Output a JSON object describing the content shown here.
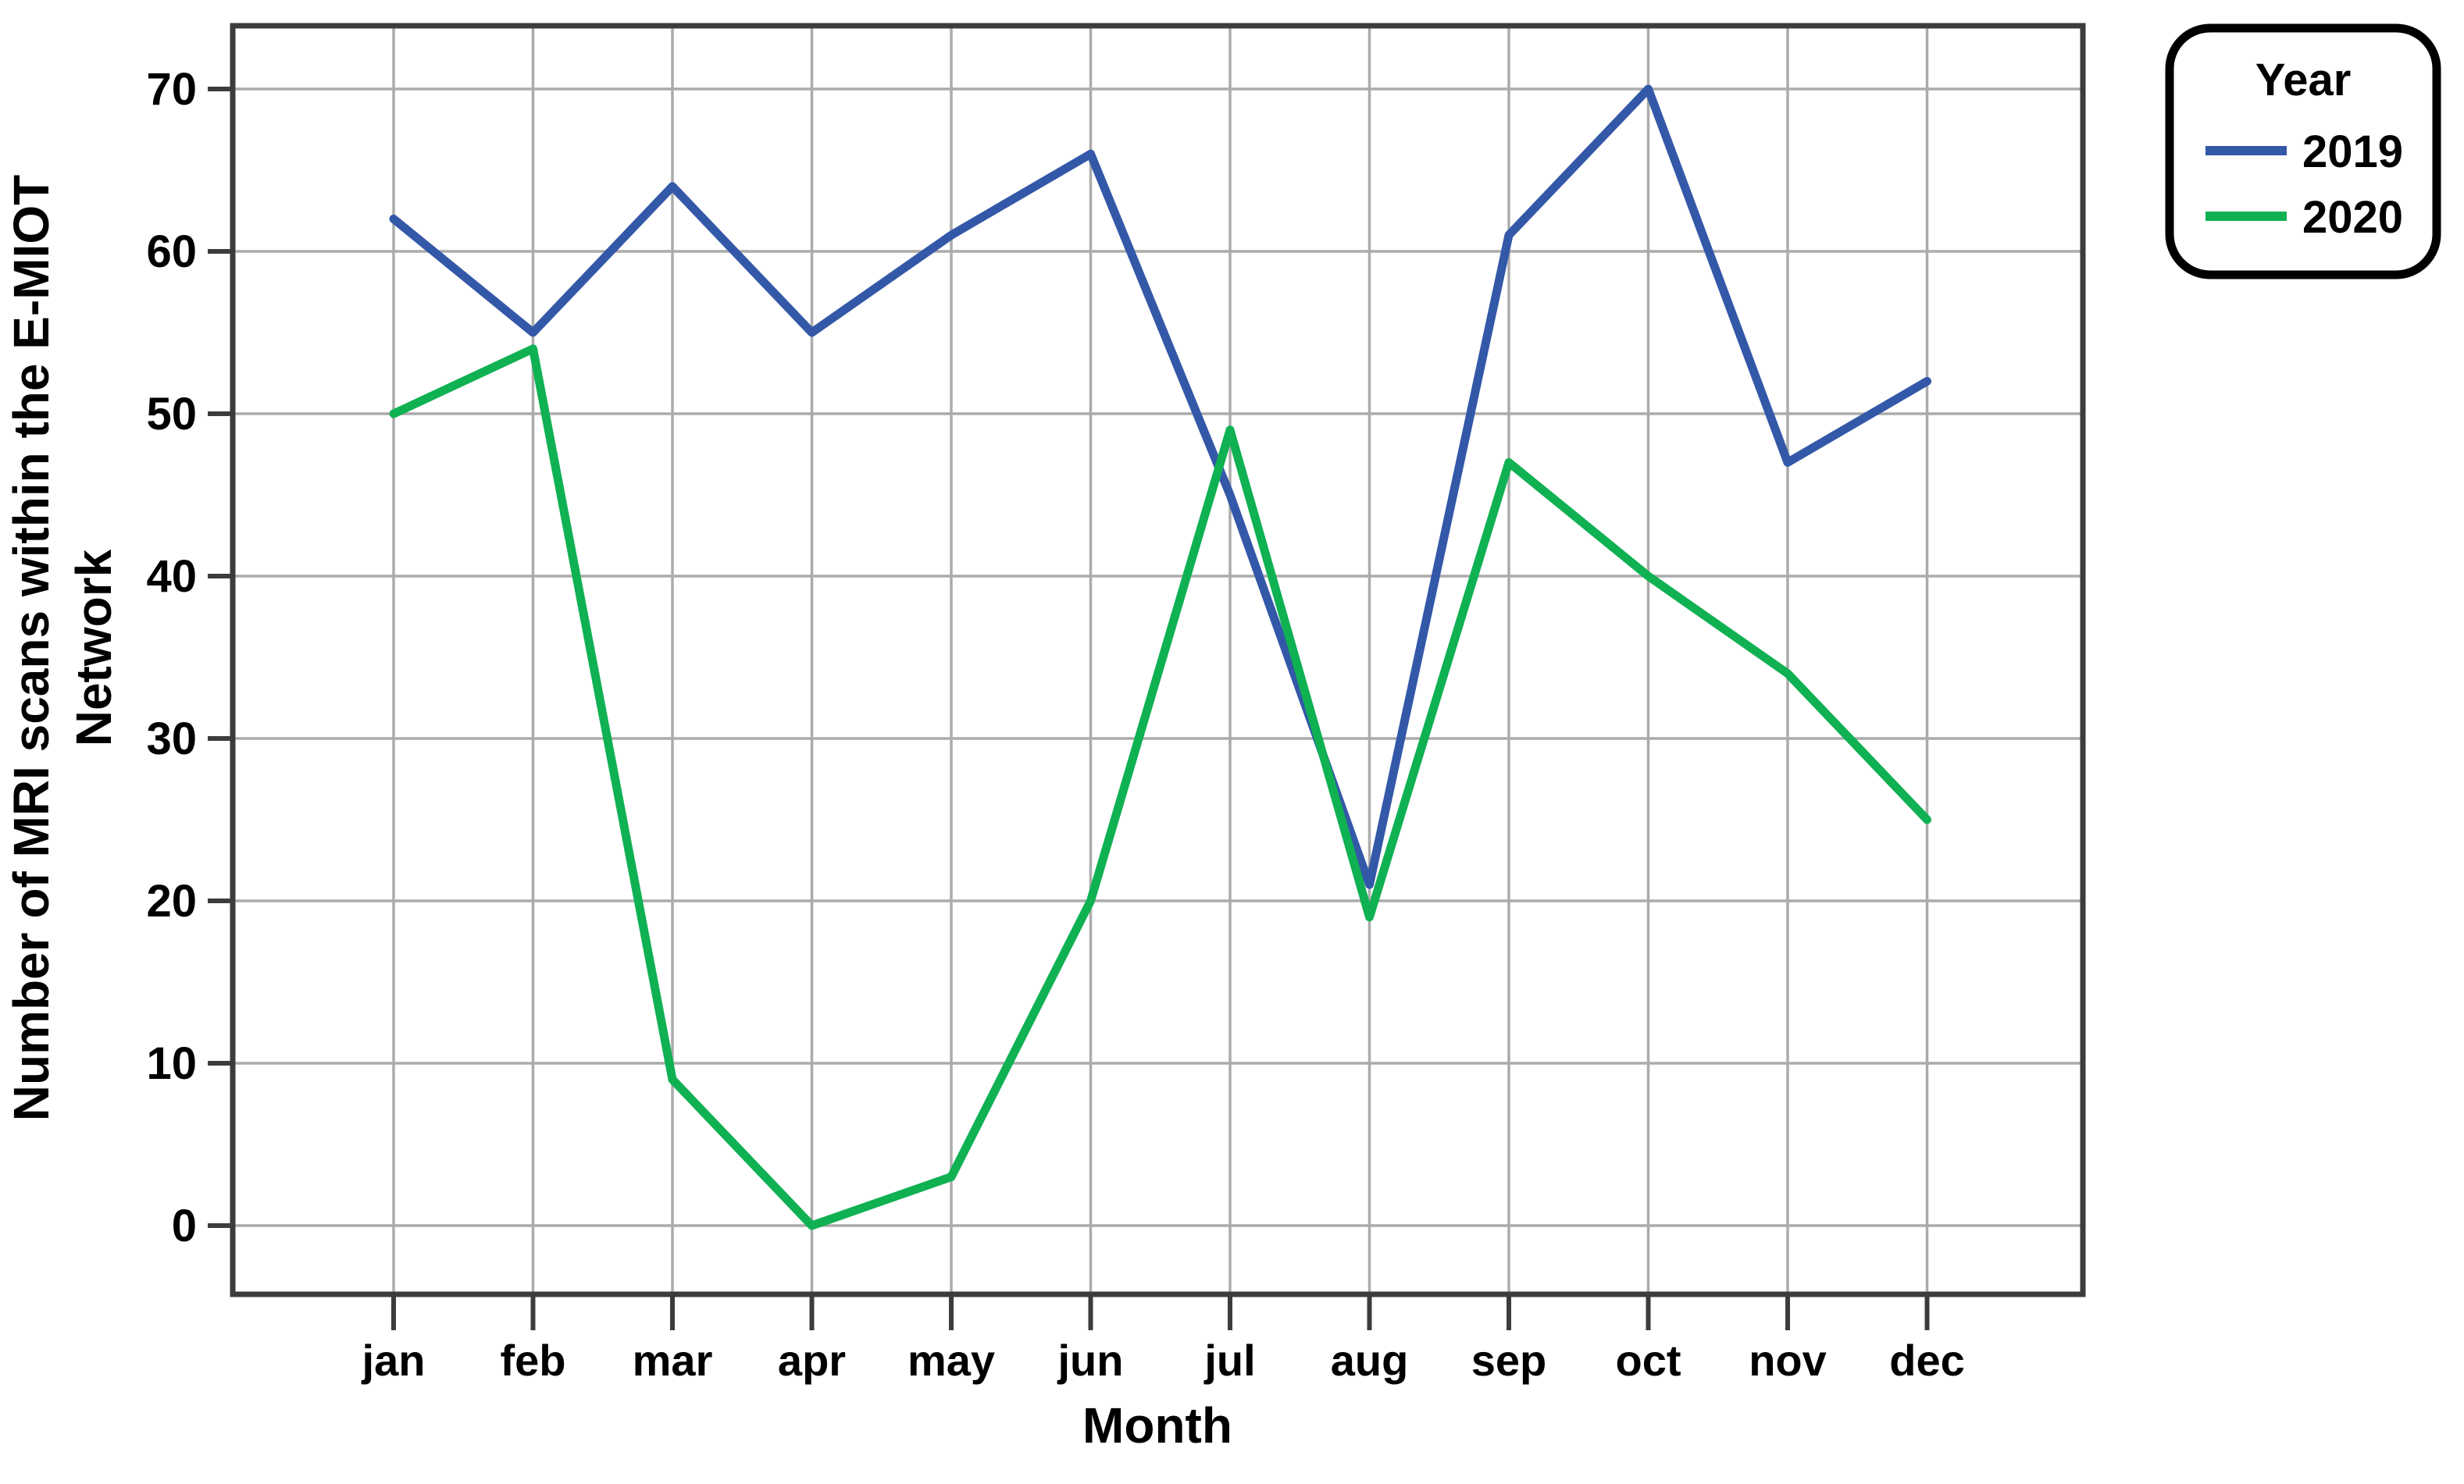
{
  "chart_data": {
    "type": "line",
    "title": "",
    "xlabel": "Month",
    "ylabel": "Number of MRI scans within the E-MIOT Network",
    "ylabel_lines": [
      "Number of MRI scans within the E-MIOT",
      "Network"
    ],
    "categories": [
      "jan",
      "feb",
      "mar",
      "apr",
      "may",
      "jun",
      "jul",
      "aug",
      "sep",
      "oct",
      "nov",
      "dec"
    ],
    "y_ticks": [
      0,
      10,
      20,
      30,
      40,
      50,
      60,
      70
    ],
    "ylim": [
      0,
      75
    ],
    "grid": true,
    "legend": {
      "title": "Year",
      "position": "outside-top-right"
    },
    "series": [
      {
        "name": "2019",
        "color": "#3458a8",
        "values": [
          62,
          55,
          64,
          55,
          61,
          66,
          45,
          21,
          61,
          70,
          47,
          52
        ]
      },
      {
        "name": "2020",
        "color": "#0fb152",
        "values": [
          50,
          54,
          9,
          0,
          3,
          20,
          49,
          19,
          47,
          40,
          34,
          25
        ]
      }
    ]
  },
  "style": {
    "grid_color": "#ababab",
    "frame_color": "#3c3c3c",
    "tick_color": "#3c3c3c",
    "text_color": "#000000",
    "legend_border_color": "#000000",
    "background_color": "#ffffff"
  }
}
